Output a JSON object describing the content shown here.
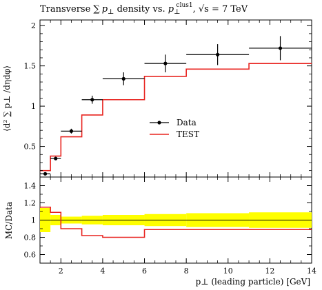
{
  "title": "Transverse ∑ p⊥ density vs. p⊥^clus1, √s = 7 TeV",
  "title_parts": {
    "lead": "Transverse ∑",
    "p1": "p",
    "perp1": "⊥",
    "mid": " density vs. ",
    "p2": "p",
    "perp2": "⊥",
    "sup": "clus1",
    "tail": ", √s = 7 TeV"
  },
  "ylabel_top": "⟨d² ∑ p⊥ /dηdφ⟩",
  "ylabel_bottom": "MC/Data",
  "xlabel": "p⊥ (leading particle) [GeV]",
  "legend": {
    "position": "center",
    "data_label": "Data",
    "mc_label": "TEST"
  },
  "colors": {
    "data": "#000000",
    "mc": "#e8231f",
    "band": "#ffff00"
  },
  "chart_data": [
    {
      "type": "line",
      "panel": "main",
      "xlim": [
        1,
        14
      ],
      "ylim": [
        0.12,
        2.07
      ],
      "xticks": [
        2,
        4,
        6,
        8,
        10,
        12,
        14
      ],
      "yticks": [
        0.5,
        1,
        1.5,
        2
      ],
      "ytick_labels": [
        "0.5",
        "1",
        "1.5",
        "2"
      ],
      "data": {
        "name": "Data",
        "x": [
          1.25,
          1.75,
          2.5,
          3.5,
          5.0,
          7.0,
          9.5,
          12.5
        ],
        "xerr": [
          0.25,
          0.25,
          0.5,
          0.5,
          1.0,
          1.0,
          1.5,
          1.5
        ],
        "y": [
          0.16,
          0.35,
          0.69,
          1.08,
          1.34,
          1.53,
          1.64,
          1.72
        ],
        "yerr": [
          0.02,
          0.02,
          0.03,
          0.05,
          0.08,
          0.11,
          0.13,
          0.15
        ]
      },
      "mc": {
        "name": "TEST",
        "edges": [
          1,
          1.5,
          2,
          3,
          4,
          6,
          8,
          11,
          14
        ],
        "values": [
          0.2,
          0.38,
          0.62,
          0.89,
          1.08,
          1.37,
          1.46,
          1.53
        ]
      }
    },
    {
      "type": "line",
      "panel": "ratio",
      "xlim": [
        1,
        14
      ],
      "ylim": [
        0.5,
        1.5
      ],
      "xticks": [
        2,
        4,
        6,
        8,
        10,
        12,
        14
      ],
      "yticks": [
        0.6,
        0.8,
        1,
        1.2,
        1.4
      ],
      "ytick_labels": [
        "0.6",
        "0.8",
        "1",
        "1.2",
        "1.4"
      ],
      "xtick_labels": [
        "2",
        "4",
        "6",
        "8",
        "10",
        "12",
        "14"
      ],
      "ratio": {
        "name": "TEST",
        "edges": [
          1,
          1.5,
          2,
          3,
          4,
          6,
          8,
          11,
          14
        ],
        "values": [
          1.15,
          1.09,
          0.9,
          0.82,
          0.8,
          0.89,
          0.89,
          0.89
        ]
      },
      "band": {
        "edges": [
          1,
          1.5,
          2,
          3,
          4,
          6,
          8,
          11,
          14
        ],
        "lo": [
          0.86,
          0.94,
          0.96,
          0.95,
          0.94,
          0.93,
          0.92,
          0.91
        ],
        "hi": [
          1.14,
          1.06,
          1.04,
          1.05,
          1.06,
          1.07,
          1.08,
          1.09
        ]
      }
    }
  ]
}
